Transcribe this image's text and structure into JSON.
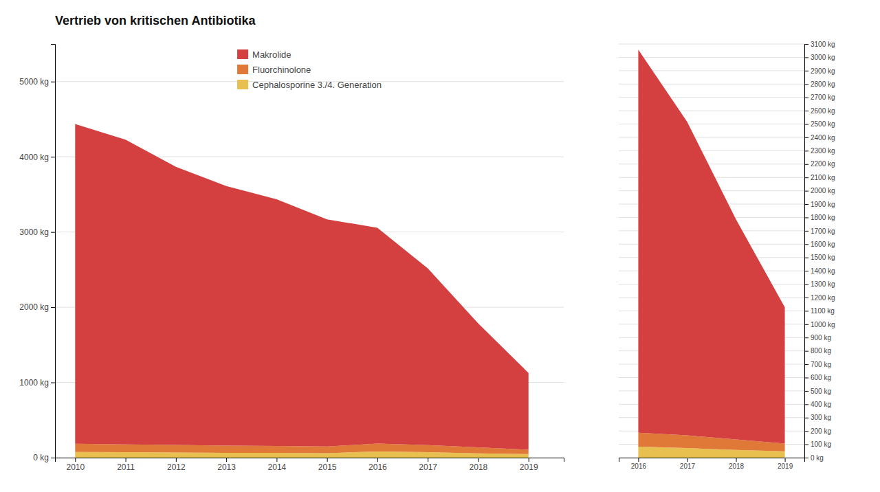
{
  "chart_data": [
    {
      "type": "area",
      "stacked": true,
      "title": "Vertrieb von kritischen Antibiotika",
      "x": [
        2010,
        2011,
        2012,
        2013,
        2014,
        2015,
        2016,
        2017,
        2018,
        2019
      ],
      "series": [
        {
          "name": "Cephalosporine 3./4. Generation",
          "color": "#e8c050",
          "values": [
            75,
            72,
            68,
            65,
            63,
            60,
            82,
            72,
            58,
            48
          ]
        },
        {
          "name": "Fluorchinolone",
          "color": "#e07838",
          "values": [
            110,
            105,
            100,
            95,
            92,
            88,
            105,
            95,
            78,
            58
          ]
        },
        {
          "name": "Makrolide",
          "color": "#d44040",
          "values": [
            4250,
            4050,
            3700,
            3450,
            3280,
            3020,
            2870,
            2350,
            1650,
            1020
          ]
        }
      ],
      "xlim": [
        2009.6,
        2019.7
      ],
      "xticks": [
        2010,
        2011,
        2012,
        2013,
        2014,
        2015,
        2016,
        2017,
        2018,
        2019
      ],
      "ylim": [
        0,
        5500
      ],
      "yticks": [
        {
          "value": 0,
          "label": "0 kg"
        },
        {
          "value": 1000,
          "label": "1000 kg"
        },
        {
          "value": 2000,
          "label": "2000 kg"
        },
        {
          "value": 3000,
          "label": "3000 kg"
        },
        {
          "value": 4000,
          "label": "4000 kg"
        },
        {
          "value": 5000,
          "label": "5000 kg"
        }
      ],
      "grid": true,
      "legend": "upper center"
    },
    {
      "type": "area",
      "stacked": true,
      "x": [
        2016,
        2017,
        2018,
        2019
      ],
      "series": [
        {
          "color": "#e8c050",
          "values": [
            82,
            72,
            58,
            48
          ]
        },
        {
          "color": "#e07838",
          "values": [
            105,
            95,
            78,
            58
          ]
        },
        {
          "color": "#d44040",
          "values": [
            2870,
            2350,
            1650,
            1020
          ]
        }
      ],
      "xlim": [
        2015.6,
        2019.4
      ],
      "xticks": [
        2016,
        2017,
        2018,
        2019
      ],
      "ylim": [
        0,
        3100
      ],
      "yticks": [
        {
          "value": 0,
          "label": "0 kg"
        },
        {
          "value": 100,
          "label": "100 kg"
        },
        {
          "value": 200,
          "label": "200 kg"
        },
        {
          "value": 300,
          "label": "300 kg"
        },
        {
          "value": 400,
          "label": "400 kg"
        },
        {
          "value": 500,
          "label": "500 kg"
        },
        {
          "value": 600,
          "label": "600 kg"
        },
        {
          "value": 700,
          "label": "700 kg"
        },
        {
          "value": 800,
          "label": "800 kg"
        },
        {
          "value": 900,
          "label": "900 kg"
        },
        {
          "value": 1000,
          "label": "1000 kg"
        },
        {
          "value": 1100,
          "label": "1100 kg"
        },
        {
          "value": 1200,
          "label": "1200 kg"
        },
        {
          "value": 1300,
          "label": "1300 kg"
        },
        {
          "value": 1400,
          "label": "1400 kg"
        },
        {
          "value": 1500,
          "label": "1500 kg"
        },
        {
          "value": 1600,
          "label": "1600 kg"
        },
        {
          "value": 1700,
          "label": "1700 kg"
        },
        {
          "value": 1800,
          "label": "1800 kg"
        },
        {
          "value": 1900,
          "label": "1900 kg"
        },
        {
          "value": 2000,
          "label": "2000 kg"
        },
        {
          "value": 2100,
          "label": "2100 kg"
        },
        {
          "value": 2200,
          "label": "2200 kg"
        },
        {
          "value": 2300,
          "label": "2300 kg"
        },
        {
          "value": 2400,
          "label": "2400 kg"
        },
        {
          "value": 2500,
          "label": "2500 kg"
        },
        {
          "value": 2600,
          "label": "2600 kg"
        },
        {
          "value": 2700,
          "label": "2700 kg"
        },
        {
          "value": 2800,
          "label": "2800 kg"
        },
        {
          "value": 2900,
          "label": "2900 kg"
        },
        {
          "value": 3000,
          "label": "3000 kg"
        },
        {
          "value": 3100,
          "label": "3100 kg"
        }
      ],
      "grid": true
    }
  ]
}
